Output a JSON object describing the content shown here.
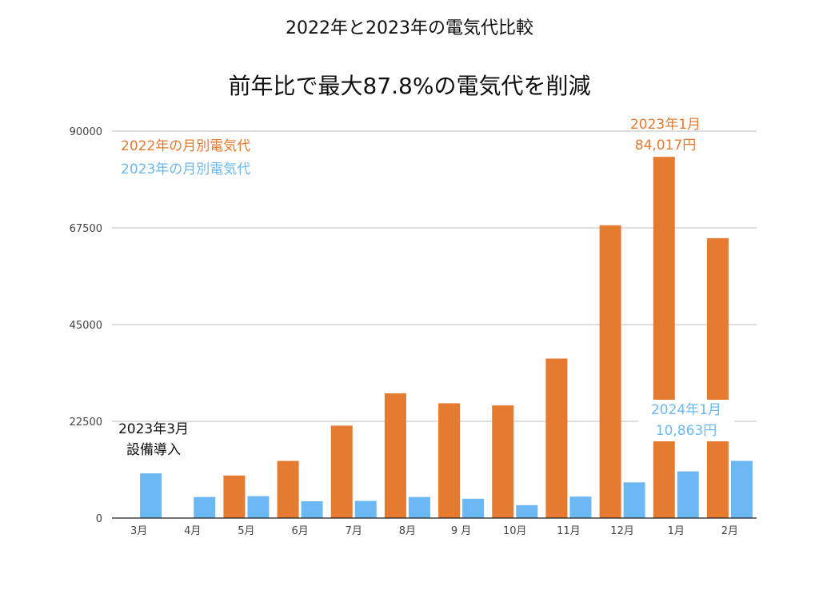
{
  "title": "2022年と2023年の電気代比較",
  "subtitle": "前年比で最大87.8%の電気代を削減",
  "colors": {
    "series_2022": "#E57A31",
    "series_2023": "#6CB8F2",
    "grid": "#BDBDBD",
    "axis": "#222222"
  },
  "legend": {
    "item_2022": "2022年の月別電気代",
    "item_2023": "2023年の月別電気代"
  },
  "annotations": {
    "max_2023_line1": "2023年1月",
    "max_2023_line2": "84,017円",
    "min_2024_line1": "2024年1月",
    "min_2024_line2": "10,863円",
    "install_line1": "2023年3月",
    "install_line2": "設備導入"
  },
  "chart_data": {
    "type": "bar",
    "title": "2022年と2023年の電気代比較",
    "subtitle": "前年比で最大87.8%の電気代を削減",
    "categories": [
      "3月",
      "4月",
      "5月",
      "6月",
      "7月",
      "8月",
      "9 月",
      "10月",
      "11月",
      "12月",
      "1月",
      "2月"
    ],
    "series": [
      {
        "name": "2022年の月別電気代",
        "color": "#E57A31",
        "values": [
          null,
          null,
          9900,
          13300,
          21500,
          29000,
          26700,
          26200,
          37100,
          68100,
          84017,
          65100
        ]
      },
      {
        "name": "2023年の月別電気代",
        "color": "#6CB8F2",
        "values": [
          10400,
          4900,
          5100,
          3900,
          4000,
          4900,
          4500,
          3000,
          5000,
          8300,
          10863,
          13300
        ]
      }
    ],
    "yticks": [
      0,
      22500,
      45000,
      67500,
      90000
    ],
    "ylim": [
      0,
      90000
    ],
    "grid": true,
    "legend_position": "top-left"
  }
}
